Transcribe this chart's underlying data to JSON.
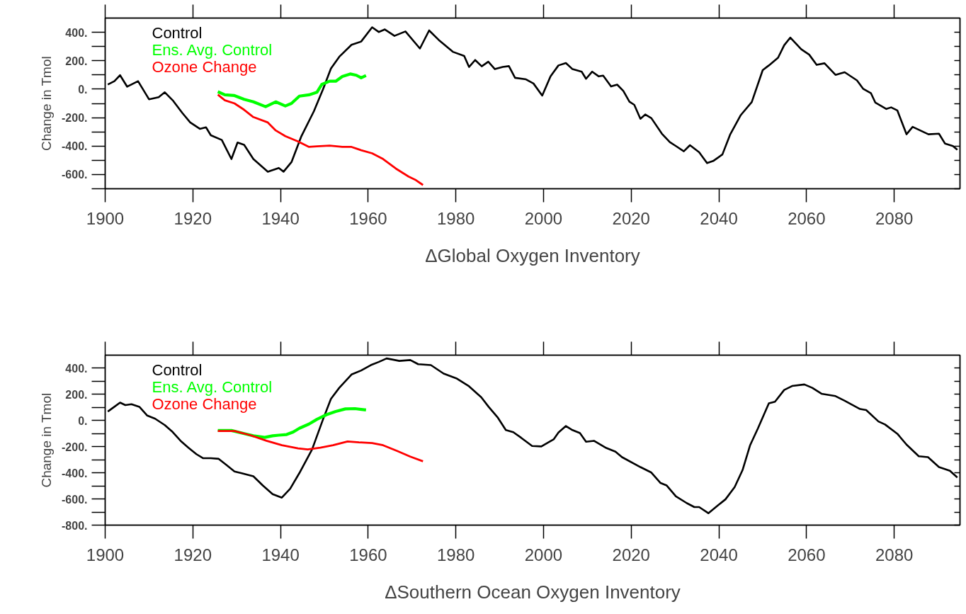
{
  "chart_data": [
    {
      "type": "line",
      "xlabel": "ΔGlobal Oxygen Inventory",
      "ylabel": "Change in Tmol",
      "xlim": [
        1900,
        2095
      ],
      "xticks": [
        1900,
        1920,
        1940,
        1960,
        1980,
        2000,
        2020,
        2040,
        2060,
        2080
      ],
      "ylim": [
        -700,
        500
      ],
      "yticks": [
        {
          "value": -700,
          "label": null
        },
        {
          "value": -600,
          "label": "-600."
        },
        {
          "value": -500,
          "label": null
        },
        {
          "value": -400,
          "label": "-400."
        },
        {
          "value": -300,
          "label": null
        },
        {
          "value": -200,
          "label": "-200."
        },
        {
          "value": -100,
          "label": null
        },
        {
          "value": 0,
          "label": "0."
        },
        {
          "value": 100,
          "label": null
        },
        {
          "value": 200,
          "label": "200."
        },
        {
          "value": 300,
          "label": null
        },
        {
          "value": 400,
          "label": "400."
        }
      ],
      "legend": "top left",
      "grid": false,
      "series": [
        {
          "name": "Control",
          "color": "#000000",
          "x": [
            1900.6,
            1902.1,
            1903.4,
            1905.0,
            1907.5,
            1910.0,
            1912.2,
            1913.6,
            1915.4,
            1917.6,
            1919.4,
            1921.6,
            1923.0,
            1924.1,
            1926.6,
            1928.8,
            1930.2,
            1931.7,
            1933.8,
            1937.1,
            1939.6,
            1940.7,
            1942.5,
            1944.7,
            1947.6,
            1949.7,
            1951.5,
            1953.4,
            1956.2,
            1958.4,
            1960.9,
            1962.4,
            1963.8,
            1966.0,
            1968.5,
            1971.8,
            1973.9,
            1976.1,
            1979.3,
            1981.9,
            1983.0,
            1984.4,
            1985.9,
            1987.4,
            1988.9,
            1990.7,
            1992.1,
            1993.5,
            1996.0,
            1997.7,
            1999.7,
            2001.6,
            2003.4,
            2005.1,
            2006.6,
            2008.7,
            2009.7,
            2011.1,
            2012.6,
            2013.6,
            2015.4,
            2016.8,
            2018.2,
            2019.6,
            2020.7,
            2022.1,
            2023.2,
            2024.6,
            2027.0,
            2028.8,
            2030.2,
            2032.0,
            2033.4,
            2035.5,
            2037.3,
            2038.7,
            2040.8,
            2042.6,
            2045.0,
            2047.5,
            2050.0,
            2051.4,
            2053.5,
            2054.9,
            2056.3,
            2058.8,
            2060.6,
            2062.3,
            2064.1,
            2066.6,
            2068.7,
            2071.5,
            2072.9,
            2074.7,
            2075.7,
            2078.2,
            2079.3,
            2080.7,
            2082.8,
            2084.2,
            2087.8,
            2090.2,
            2091.6,
            2093.4,
            2094.4
          ],
          "values": [
            33,
            56,
            98,
            18,
            56,
            -71,
            -56,
            -22,
            -78,
            -167,
            -234,
            -279,
            -268,
            -324,
            -357,
            -491,
            -375,
            -391,
            -491,
            -580,
            -554,
            -580,
            -513,
            -335,
            -156,
            0,
            145,
            228,
            312,
            335,
            435,
            402,
            420,
            375,
            406,
            286,
            413,
            346,
            263,
            234,
            156,
            205,
            161,
            193,
            141,
            156,
            162,
            80,
            69,
            40,
            -45,
            90,
            167,
            184,
            141,
            123,
            73,
            123,
            90,
            95,
            19,
            32,
            -12,
            -88,
            -110,
            -208,
            -178,
            -204,
            -313,
            -372,
            -400,
            -437,
            -394,
            -444,
            -520,
            -505,
            -459,
            -317,
            -182,
            -91,
            134,
            167,
            221,
            309,
            363,
            280,
            243,
            171,
            182,
            101,
            119,
            62,
            3,
            -29,
            -95,
            -139,
            -128,
            -149,
            -317,
            -265,
            -317,
            -313,
            -383,
            -400,
            -426
          ]
        },
        {
          "name": "Ens. Avg. Control",
          "color": "#00ff00",
          "x": [
            1925.7,
            1927.3,
            1929.5,
            1931.7,
            1933.8,
            1936.6,
            1938.9,
            1941.1,
            1942.5,
            1944.3,
            1946.5,
            1948.3,
            1949.4,
            1951.2,
            1952.6,
            1954.1,
            1955.9,
            1957.3,
            1958.4,
            1959.5
          ],
          "values": [
            -18,
            -40,
            -45,
            -71,
            -89,
            -123,
            -89,
            -118,
            -100,
            -49,
            -40,
            -22,
            33,
            56,
            56,
            89,
            107,
            98,
            80,
            96
          ]
        },
        {
          "name": "Ozone Change",
          "color": "#ff0000",
          "x": [
            1925.7,
            1927.3,
            1929.5,
            1931.7,
            1933.8,
            1937.1,
            1938.9,
            1941.1,
            1944.0,
            1946.5,
            1948.3,
            1951.2,
            1954.1,
            1956.2,
            1958.4,
            1960.9,
            1963.4,
            1966.3,
            1969.2,
            1970.7,
            1972.5
          ],
          "values": [
            -38,
            -78,
            -100,
            -145,
            -196,
            -234,
            -290,
            -330,
            -368,
            -406,
            -402,
            -397,
            -406,
            -406,
            -429,
            -451,
            -491,
            -558,
            -614,
            -636,
            -674
          ]
        }
      ]
    },
    {
      "type": "line",
      "xlabel": "ΔSouthern Ocean Oxygen Inventory",
      "ylabel": "Change in Tmol",
      "xlim": [
        1900,
        2095
      ],
      "xticks": [
        1900,
        1920,
        1940,
        1960,
        1980,
        2000,
        2020,
        2040,
        2060,
        2080
      ],
      "ylim": [
        -800,
        500
      ],
      "yticks": [
        {
          "value": -800,
          "label": "-800."
        },
        {
          "value": -700,
          "label": null
        },
        {
          "value": -600,
          "label": "-600."
        },
        {
          "value": -500,
          "label": null
        },
        {
          "value": -400,
          "label": "-400."
        },
        {
          "value": -300,
          "label": null
        },
        {
          "value": -200,
          "label": "-200."
        },
        {
          "value": -100,
          "label": null
        },
        {
          "value": 0,
          "label": "0."
        },
        {
          "value": 100,
          "label": null
        },
        {
          "value": 200,
          "label": "200."
        },
        {
          "value": 300,
          "label": null
        },
        {
          "value": 400,
          "label": "400."
        }
      ],
      "legend": "top left",
      "grid": false,
      "series": [
        {
          "name": "Control",
          "color": "#000000",
          "x": [
            1900.6,
            1902.1,
            1903.4,
            1904.6,
            1906.0,
            1907.8,
            1909.6,
            1911.4,
            1913.6,
            1915.4,
            1917.2,
            1919.0,
            1920.8,
            1922.3,
            1924.1,
            1925.9,
            1927.7,
            1929.5,
            1931.0,
            1932.4,
            1933.8,
            1936.0,
            1938.2,
            1940.3,
            1942.2,
            1944.3,
            1947.2,
            1949.7,
            1951.5,
            1953.4,
            1956.2,
            1958.4,
            1960.6,
            1962.4,
            1964.2,
            1967.1,
            1969.6,
            1971.4,
            1974.3,
            1977.2,
            1980.1,
            1983.0,
            1985.8,
            1987.5,
            1989.6,
            1991.4,
            1993.1,
            1994.9,
            1997.4,
            1999.5,
            2002.3,
            2003.4,
            2005.1,
            2006.6,
            2008.3,
            2009.7,
            2011.5,
            2014.3,
            2016.4,
            2017.9,
            2022.1,
            2024.6,
            2026.7,
            2028.1,
            2030.2,
            2032.7,
            2034.4,
            2035.5,
            2037.6,
            2039.7,
            2041.5,
            2043.6,
            2045.4,
            2047.1,
            2048.9,
            2051.4,
            2052.8,
            2054.9,
            2056.7,
            2059.5,
            2061.3,
            2063.4,
            2066.6,
            2068.7,
            2072.2,
            2073.6,
            2076.4,
            2077.9,
            2080.7,
            2082.8,
            2085.6,
            2087.7,
            2090.2,
            2092.7,
            2094.4
          ],
          "values": [
            69,
            105,
            137,
            118,
            125,
            105,
            38,
            14,
            -35,
            -88,
            -155,
            -208,
            -257,
            -288,
            -288,
            -293,
            -341,
            -390,
            -402,
            -414,
            -426,
            -498,
            -563,
            -590,
            -522,
            -402,
            -221,
            9,
            166,
            250,
            352,
            383,
            424,
            448,
            475,
            456,
            463,
            431,
            424,
            359,
            323,
            262,
            178,
            104,
            21,
            -73,
            -89,
            -132,
            -195,
            -198,
            -144,
            -92,
            -42,
            -73,
            -96,
            -162,
            -155,
            -210,
            -238,
            -280,
            -356,
            -398,
            -478,
            -497,
            -580,
            -632,
            -662,
            -662,
            -709,
            -651,
            -603,
            -509,
            -379,
            -191,
            -61,
            132,
            144,
            234,
            264,
            276,
            250,
            205,
            187,
            151,
            88,
            80,
            -7,
            -30,
            -101,
            -184,
            -273,
            -280,
            -356,
            -384,
            -436
          ]
        },
        {
          "name": "Ens. Avg. Control",
          "color": "#00ff00",
          "x": [
            1925.7,
            1928.8,
            1931.7,
            1933.8,
            1936.4,
            1938.2,
            1939.6,
            1941.4,
            1942.9,
            1944.3,
            1946.5,
            1948.3,
            1950.5,
            1952.6,
            1954.8,
            1957.0,
            1959.5
          ],
          "values": [
            -76,
            -76,
            -100,
            -117,
            -129,
            -117,
            -112,
            -107,
            -88,
            -59,
            -27,
            9,
            45,
            69,
            89,
            91,
            81
          ]
        },
        {
          "name": "Ozone Change",
          "color": "#ff0000",
          "x": [
            1925.7,
            1929.5,
            1933.1,
            1936.8,
            1940.3,
            1944.0,
            1946.2,
            1949.1,
            1952.0,
            1955.3,
            1957.9,
            1960.9,
            1963.4,
            1966.6,
            1969.6,
            1972.5
          ],
          "values": [
            -80,
            -80,
            -112,
            -155,
            -189,
            -213,
            -221,
            -208,
            -189,
            -160,
            -167,
            -172,
            -189,
            -233,
            -276,
            -312
          ]
        }
      ]
    }
  ]
}
